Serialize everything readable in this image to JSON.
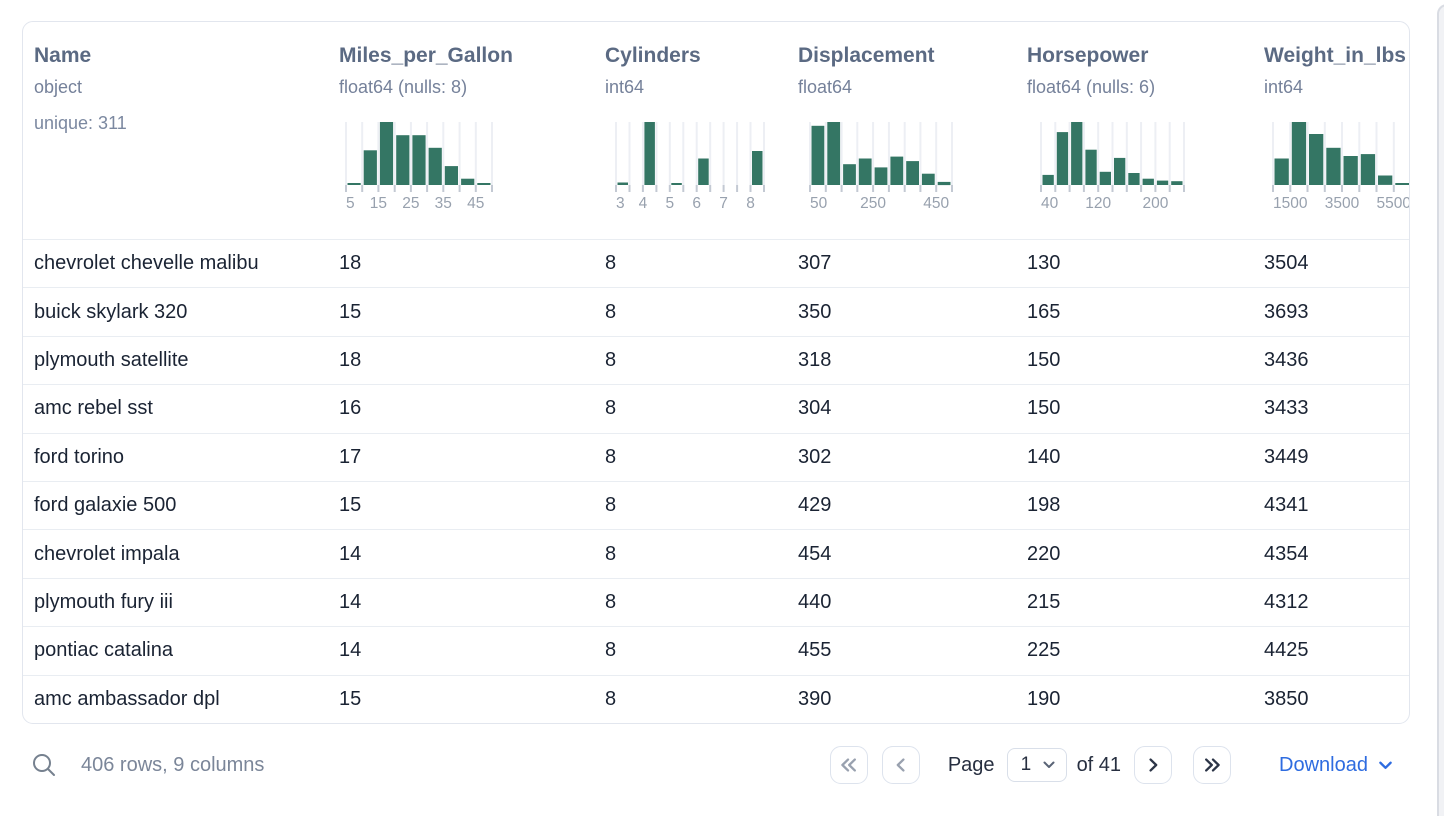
{
  "table": {
    "columns": [
      {
        "name": "Name",
        "type": "object",
        "extra": "unique: 311"
      },
      {
        "name": "Miles_per_Gallon",
        "type": "float64 (nulls: 8)",
        "histogram": {
          "type": "bar",
          "bins": [
            3,
            55,
            100,
            79,
            79,
            59,
            30,
            10,
            3
          ],
          "tick_labels": [
            {
              "at": 0,
              "text": "5"
            },
            {
              "at": 2,
              "text": "15"
            },
            {
              "at": 4,
              "text": "25"
            },
            {
              "at": 6,
              "text": "35"
            },
            {
              "at": 8,
              "text": "45"
            }
          ]
        }
      },
      {
        "name": "Cylinders",
        "type": "int64",
        "histogram": {
          "type": "bar",
          "bins": [
            4,
            0,
            100,
            0,
            2,
            0,
            42,
            0,
            0,
            0,
            54
          ],
          "tick_labels": [
            {
              "at": 0,
              "text": "3"
            },
            {
              "at": 2,
              "text": "4"
            },
            {
              "at": 4,
              "text": "5"
            },
            {
              "at": 6,
              "text": "6"
            },
            {
              "at": 8,
              "text": "7"
            },
            {
              "at": 10,
              "text": "8"
            }
          ]
        }
      },
      {
        "name": "Displacement",
        "type": "float64",
        "histogram": {
          "type": "bar",
          "bins": [
            94,
            100,
            33,
            42,
            28,
            45,
            38,
            18,
            5
          ],
          "tick_labels": [
            {
              "at": 0,
              "text": "50"
            },
            {
              "at": 4,
              "text": "250"
            },
            {
              "at": 8,
              "text": "450"
            }
          ]
        }
      },
      {
        "name": "Horsepower",
        "type": "float64 (nulls: 6)",
        "histogram": {
          "type": "bar",
          "bins": [
            16,
            84,
            100,
            56,
            21,
            43,
            19,
            10,
            7,
            6
          ],
          "tick_labels": [
            {
              "at": 0,
              "text": "40"
            },
            {
              "at": 4,
              "text": "120"
            },
            {
              "at": 8,
              "text": "200"
            }
          ]
        }
      },
      {
        "name": "Weight_in_lbs",
        "type": "int64",
        "histogram": {
          "type": "bar",
          "bins": [
            42,
            100,
            81,
            59,
            46,
            49,
            15,
            3
          ],
          "tick_labels": [
            {
              "at": 0,
              "text": "1500"
            },
            {
              "at": 4,
              "text": "3500"
            },
            {
              "at": 8,
              "text": "5500"
            }
          ]
        }
      }
    ],
    "rows": [
      [
        "chevrolet chevelle malibu",
        "18",
        "8",
        "307",
        "130",
        "3504"
      ],
      [
        "buick skylark 320",
        "15",
        "8",
        "350",
        "165",
        "3693"
      ],
      [
        "plymouth satellite",
        "18",
        "8",
        "318",
        "150",
        "3436"
      ],
      [
        "amc rebel sst",
        "16",
        "8",
        "304",
        "150",
        "3433"
      ],
      [
        "ford torino",
        "17",
        "8",
        "302",
        "140",
        "3449"
      ],
      [
        "ford galaxie 500",
        "15",
        "8",
        "429",
        "198",
        "4341"
      ],
      [
        "chevrolet impala",
        "14",
        "8",
        "454",
        "220",
        "4354"
      ],
      [
        "plymouth fury iii",
        "14",
        "8",
        "440",
        "215",
        "4312"
      ],
      [
        "pontiac catalina",
        "14",
        "8",
        "455",
        "225",
        "4425"
      ],
      [
        "amc ambassador dpl",
        "15",
        "8",
        "390",
        "190",
        "3850"
      ]
    ]
  },
  "footer": {
    "summary": "406 rows, 9 columns",
    "page_label": "Page",
    "page_value": "1",
    "total_label": "of 41",
    "download_label": "Download"
  },
  "icons": {
    "search": "magnifier",
    "first_page": "double-chevron-left",
    "prev_page": "chevron-left",
    "next_page": "chevron-right",
    "last_page": "double-chevron-right",
    "page_select": "chevron-down",
    "download": "chevron-down"
  },
  "colors": {
    "histogram_bar": "#347664",
    "histogram_grid": "#edeff4",
    "download_link": "#2e6ce0",
    "header_text": "#5b6a83",
    "row_text": "#1a2333"
  }
}
